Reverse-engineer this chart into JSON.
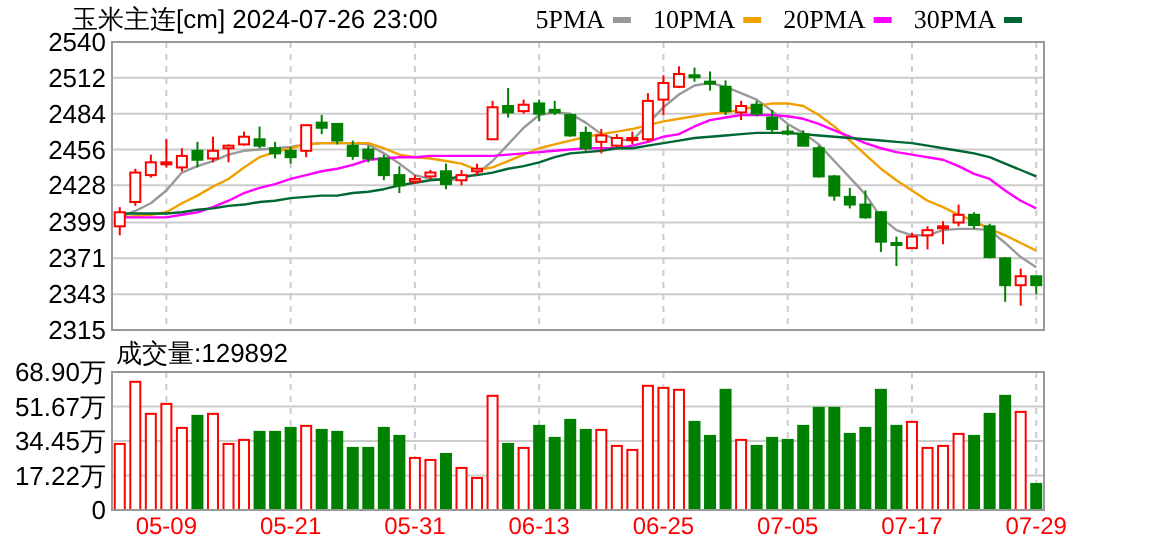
{
  "chart_data": [
    {
      "type": "candlestick",
      "title": "玉米主连[cm] 2024-07-26 23:00",
      "categories": [
        null,
        null,
        null,
        null,
        null,
        null,
        null,
        null,
        null,
        null,
        null,
        null,
        null,
        null,
        null,
        null,
        null,
        null,
        null,
        null,
        null,
        null,
        null,
        null,
        null,
        null,
        null,
        null,
        null,
        null,
        null,
        null,
        null,
        null,
        null,
        null,
        null,
        null,
        null,
        null,
        null,
        null,
        null,
        null,
        null,
        null,
        null,
        null,
        null,
        null,
        null,
        null,
        null,
        null,
        null,
        null,
        null,
        null,
        null,
        null
      ],
      "ohlc": [
        [
          2396,
          2411,
          2389,
          2407
        ],
        [
          2415,
          2441,
          2412,
          2438
        ],
        [
          2436,
          2452,
          2434,
          2446
        ],
        [
          2445,
          2464,
          2442,
          2446
        ],
        [
          2442,
          2457,
          2439,
          2451
        ],
        [
          2455,
          2462,
          2442,
          2448
        ],
        [
          2449,
          2466,
          2446,
          2455
        ],
        [
          2457,
          2460,
          2446,
          2459
        ],
        [
          2460,
          2470,
          2459,
          2466
        ],
        [
          2464,
          2474,
          2457,
          2459
        ],
        [
          2457,
          2462,
          2449,
          2453
        ],
        [
          2455,
          2458,
          2445,
          2450
        ],
        [
          2455,
          2475,
          2450,
          2475
        ],
        [
          2477,
          2483,
          2468,
          2473
        ],
        [
          2476,
          2476,
          2460,
          2463
        ],
        [
          2459,
          2463,
          2448,
          2451
        ],
        [
          2456,
          2459,
          2446,
          2449
        ],
        [
          2449,
          2452,
          2432,
          2436
        ],
        [
          2436,
          2443,
          2422,
          2428
        ],
        [
          2431,
          2436,
          2429,
          2433
        ],
        [
          2435,
          2440,
          2433,
          2438
        ],
        [
          2439,
          2445,
          2425,
          2429
        ],
        [
          2432,
          2440,
          2428,
          2436
        ],
        [
          2439,
          2445,
          2436,
          2441
        ],
        [
          2464,
          2494,
          2464,
          2489
        ],
        [
          2490,
          2504,
          2481,
          2485
        ],
        [
          2486,
          2495,
          2484,
          2491
        ],
        [
          2492,
          2495,
          2478,
          2484
        ],
        [
          2487,
          2494,
          2483,
          2485
        ],
        [
          2483,
          2484,
          2466,
          2467
        ],
        [
          2469,
          2474,
          2455,
          2457
        ],
        [
          2462,
          2472,
          2453,
          2467
        ],
        [
          2459,
          2468,
          2458,
          2465
        ],
        [
          2464,
          2470,
          2460,
          2465
        ],
        [
          2464,
          2500,
          2462,
          2494
        ],
        [
          2495,
          2514,
          2483,
          2508
        ],
        [
          2505,
          2521,
          2504,
          2515
        ],
        [
          2514,
          2520,
          2509,
          2513
        ],
        [
          2509,
          2517,
          2502,
          2508
        ],
        [
          2505,
          2510,
          2483,
          2486
        ],
        [
          2485,
          2494,
          2479,
          2490
        ],
        [
          2491,
          2494,
          2482,
          2484
        ],
        [
          2481,
          2487,
          2469,
          2472
        ],
        [
          2470,
          2475,
          2467,
          2469
        ],
        [
          2468,
          2471,
          2459,
          2459
        ],
        [
          2457,
          2459,
          2434,
          2435
        ],
        [
          2435,
          2436,
          2416,
          2420
        ],
        [
          2419,
          2426,
          2410,
          2413
        ],
        [
          2413,
          2424,
          2402,
          2403
        ],
        [
          2407,
          2408,
          2376,
          2384
        ],
        [
          2383,
          2388,
          2365,
          2382
        ],
        [
          2379,
          2391,
          2379,
          2388
        ],
        [
          2389,
          2396,
          2378,
          2393
        ],
        [
          2395,
          2400,
          2382,
          2396
        ],
        [
          2399,
          2413,
          2396,
          2405
        ],
        [
          2405,
          2407,
          2394,
          2397
        ],
        [
          2396,
          2398,
          2371,
          2372
        ],
        [
          2371,
          2372,
          2337,
          2350
        ],
        [
          2350,
          2363,
          2334,
          2357
        ],
        [
          2357,
          2357,
          2343,
          2350
        ]
      ],
      "colors": [
        "#ff0000",
        "#ff0000",
        "#ff0000",
        "#ff0000",
        "#ff0000",
        "#008000",
        "#ff0000",
        "#ff0000",
        "#ff0000",
        "#008000",
        "#008000",
        "#008000",
        "#ff0000",
        "#008000",
        "#008000",
        "#008000",
        "#008000",
        "#008000",
        "#008000",
        "#ff0000",
        "#ff0000",
        "#008000",
        "#ff0000",
        "#ff0000",
        "#ff0000",
        "#008000",
        "#ff0000",
        "#008000",
        "#008000",
        "#008000",
        "#008000",
        "#ff0000",
        "#ff0000",
        "#ff0000",
        "#ff0000",
        "#ff0000",
        "#ff0000",
        "#008000",
        "#008000",
        "#008000",
        "#ff0000",
        "#008000",
        "#008000",
        "#008000",
        "#008000",
        "#008000",
        "#008000",
        "#008000",
        "#008000",
        "#008000",
        "#008000",
        "#ff0000",
        "#ff0000",
        "#ff0000",
        "#ff0000",
        "#008000",
        "#008000",
        "#008000",
        "#ff0000",
        "#008000"
      ],
      "series": [
        {
          "name": "5PMA",
          "type": "line",
          "color": "#999999",
          "values": [
            2403,
            2408,
            2414,
            2424,
            2438,
            2443,
            2447,
            2452,
            2455,
            2456,
            2457,
            2458,
            2460,
            2461,
            2461,
            2461,
            2460,
            2453,
            2445,
            2436,
            2433,
            2432,
            2433,
            2437,
            2447,
            2460,
            2473,
            2483,
            2485,
            2484,
            2477,
            2468,
            2464,
            2463,
            2476,
            2489,
            2499,
            2506,
            2508,
            2505,
            2500,
            2495,
            2486,
            2476,
            2469,
            2460,
            2447,
            2434,
            2421,
            2403,
            2393,
            2389,
            2389,
            2393,
            2394,
            2394,
            2393,
            2383,
            2372,
            2364
          ]
        },
        {
          "name": "10PMA",
          "type": "line",
          "color": "#f0a000",
          "values": [
            2403,
            2404,
            2405,
            2407,
            2414,
            2420,
            2427,
            2433,
            2442,
            2450,
            2454,
            2457,
            2460,
            2461,
            2461,
            2461,
            2461,
            2457,
            2452,
            2450,
            2449,
            2447,
            2445,
            2440,
            2442,
            2447,
            2452,
            2457,
            2460,
            2463,
            2466,
            2468,
            2470,
            2472,
            2475,
            2478,
            2480,
            2482,
            2484,
            2485,
            2487,
            2490,
            2492,
            2492,
            2490,
            2483,
            2474,
            2463,
            2452,
            2441,
            2432,
            2424,
            2416,
            2411,
            2405,
            2400,
            2394,
            2389,
            2383,
            2377
          ]
        },
        {
          "name": "20PMA",
          "type": "line",
          "color": "#ff00ff",
          "values": [
            2403,
            2403,
            2403,
            2403,
            2405,
            2407,
            2411,
            2416,
            2422,
            2426,
            2429,
            2433,
            2436,
            2439,
            2441,
            2444,
            2448,
            2449,
            2450,
            2450,
            2451,
            2451,
            2451,
            2451,
            2451,
            2452,
            2453,
            2454,
            2455,
            2456,
            2457,
            2457,
            2457,
            2459,
            2462,
            2466,
            2468,
            2474,
            2479,
            2481,
            2483,
            2483,
            2483,
            2482,
            2480,
            2476,
            2471,
            2466,
            2461,
            2457,
            2454,
            2452,
            2450,
            2448,
            2443,
            2437,
            2433,
            2424,
            2416,
            2410
          ]
        },
        {
          "name": "30PMA",
          "type": "line",
          "color": "#006633",
          "values": [
            2406,
            2406,
            2406,
            2406,
            2407,
            2409,
            2410,
            2412,
            2413,
            2415,
            2416,
            2418,
            2419,
            2420,
            2420,
            2422,
            2423,
            2425,
            2428,
            2430,
            2432,
            2433,
            2435,
            2436,
            2438,
            2441,
            2443,
            2446,
            2450,
            2453,
            2454,
            2455,
            2457,
            2457,
            2459,
            2461,
            2463,
            2465,
            2466,
            2467,
            2468,
            2469,
            2469,
            2469,
            2468,
            2467,
            2466,
            2465,
            2464,
            2463,
            2462,
            2461,
            2459,
            2457,
            2455,
            2453,
            2450,
            2445,
            2440,
            2435
          ]
        }
      ],
      "ylim": [
        2315,
        2540
      ],
      "yticks": [
        2315,
        2343,
        2371,
        2399,
        2428,
        2456,
        2484,
        2512,
        2540
      ],
      "grid": true,
      "legend": "top right",
      "tick_labels": "y"
    },
    {
      "type": "bar",
      "title": "成交量:129892",
      "categories": [
        null,
        null,
        null,
        "05-09",
        null,
        null,
        null,
        null,
        null,
        null,
        null,
        "05-21",
        null,
        null,
        null,
        null,
        null,
        null,
        null,
        "05-31",
        null,
        null,
        null,
        null,
        null,
        null,
        null,
        "06-13",
        null,
        null,
        null,
        null,
        null,
        null,
        null,
        "06-25",
        null,
        null,
        null,
        null,
        null,
        null,
        null,
        "07-05",
        null,
        null,
        null,
        null,
        null,
        null,
        null,
        "07-17",
        null,
        null,
        null,
        null,
        null,
        null,
        null,
        "07-29"
      ],
      "values": [
        33,
        64,
        48,
        53,
        41,
        47,
        48,
        33,
        35,
        39,
        39,
        41,
        42,
        40,
        39,
        31,
        31,
        41,
        37,
        26,
        25,
        28,
        21,
        16,
        57,
        33,
        31,
        42,
        36,
        45,
        40,
        40,
        32,
        30,
        62,
        61,
        60,
        44,
        37,
        60,
        35,
        32,
        36,
        35,
        42,
        51,
        51,
        38,
        41,
        60,
        42,
        44,
        31,
        32,
        38,
        37,
        48,
        57,
        49,
        13
      ],
      "colors": [
        "#ff0000",
        "#ff0000",
        "#ff0000",
        "#ff0000",
        "#ff0000",
        "#008000",
        "#ff0000",
        "#ff0000",
        "#ff0000",
        "#008000",
        "#008000",
        "#008000",
        "#ff0000",
        "#008000",
        "#008000",
        "#008000",
        "#008000",
        "#008000",
        "#008000",
        "#ff0000",
        "#ff0000",
        "#008000",
        "#ff0000",
        "#ff0000",
        "#ff0000",
        "#008000",
        "#ff0000",
        "#008000",
        "#008000",
        "#008000",
        "#008000",
        "#ff0000",
        "#ff0000",
        "#ff0000",
        "#ff0000",
        "#ff0000",
        "#ff0000",
        "#008000",
        "#008000",
        "#008000",
        "#ff0000",
        "#008000",
        "#008000",
        "#008000",
        "#008000",
        "#008000",
        "#008000",
        "#008000",
        "#008000",
        "#008000",
        "#008000",
        "#ff0000",
        "#ff0000",
        "#ff0000",
        "#ff0000",
        "#008000",
        "#008000",
        "#008000",
        "#ff0000",
        "#008000"
      ],
      "ylim": [
        0,
        68.9
      ],
      "yticks": [
        0,
        {
          "value": 17.22,
          "label": "17.22万"
        },
        {
          "value": 34.45,
          "label": "34.45万"
        },
        {
          "value": 51.67,
          "label": "51.67万"
        },
        {
          "value": 68.9,
          "label": "68.90万"
        }
      ],
      "grid": true
    }
  ]
}
